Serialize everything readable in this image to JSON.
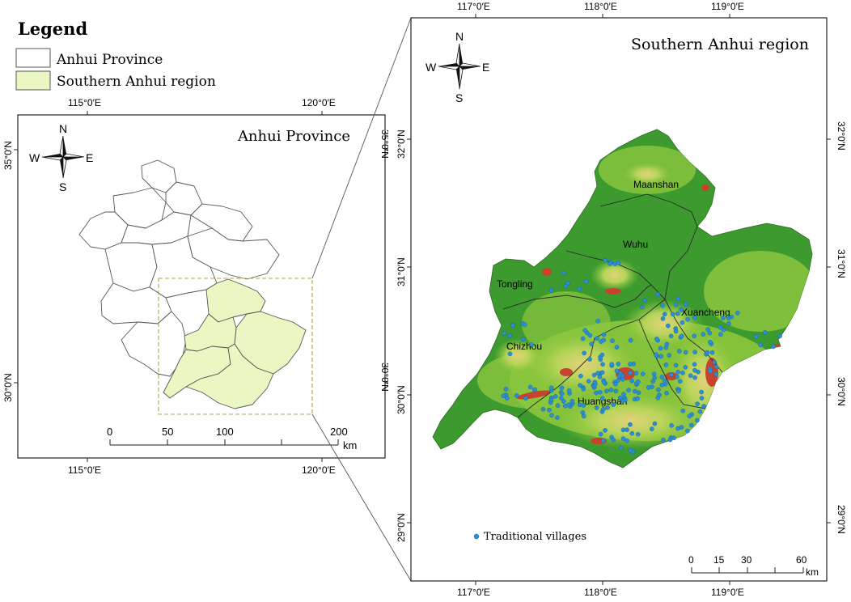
{
  "legend": {
    "title": "Legend",
    "items": [
      {
        "label": "Anhui Province",
        "fill": "#ffffff"
      },
      {
        "label": "Southern Anhui region",
        "fill": "#eaf7c2"
      }
    ]
  },
  "compass": {
    "n": "N",
    "s": "S",
    "e": "E",
    "w": "W"
  },
  "left_map": {
    "title": "Anhui Province",
    "top_ticks": [
      "115°0′E",
      "120°0′E"
    ],
    "bottom_ticks": [
      "115°0′E",
      "120°0′E"
    ],
    "left_ticks": [
      "35°0′N",
      "30°0′N"
    ],
    "right_ticks": [
      "35°0′N",
      "30°0′N"
    ],
    "scale_labels": [
      "0",
      "50",
      "100",
      "200"
    ],
    "scale_unit": "km"
  },
  "right_map": {
    "title": "Southern Anhui region",
    "top_ticks": [
      "117°0′E",
      "118°0′E",
      "119°0′E"
    ],
    "bottom_ticks": [
      "117°0′E",
      "118°0′E",
      "119°0′E"
    ],
    "left_ticks": [
      "32°0′N",
      "31°0′N",
      "30°0′N",
      "29°0′N"
    ],
    "right_ticks": [
      "32°0′N",
      "31°0′N",
      "30°0′N",
      "29°0′N"
    ],
    "cities": [
      "Maanshan",
      "Wuhu",
      "Tongling",
      "Xuancheng",
      "Chizhou",
      "Huangshan"
    ],
    "villages_label": "Traditional villages",
    "scale_labels": [
      "0",
      "15",
      "30",
      "60"
    ],
    "scale_unit": "km"
  },
  "colors": {
    "lowland": "#3c9a2e",
    "hills": "#8cc63e",
    "highland": "#e2d27a",
    "peaks": "#c8432e",
    "villages": "#2b8fd6",
    "southern_region": "#eaf7c2",
    "extent_box": "#b5a23a"
  }
}
